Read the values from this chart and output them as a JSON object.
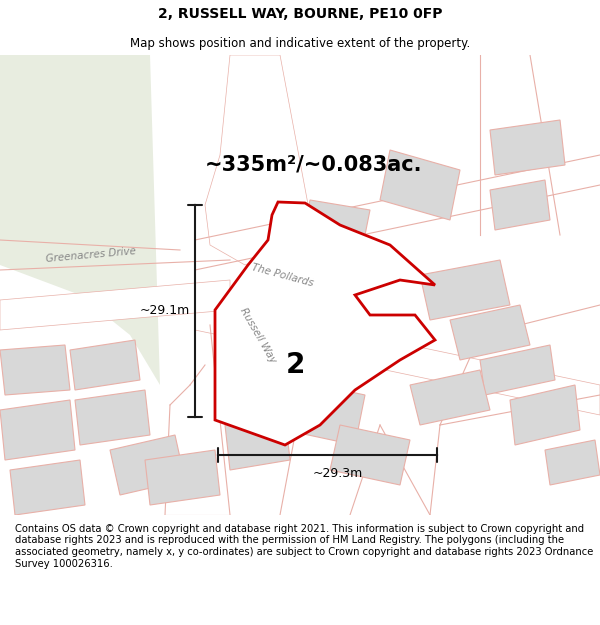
{
  "title": "2, RUSSELL WAY, BOURNE, PE10 0FP",
  "subtitle": "Map shows position and indicative extent of the property.",
  "area_label": "~335m²/~0.083ac.",
  "plot_number": "2",
  "dim_vertical": "~29.1m",
  "dim_horizontal": "~29.3m",
  "footer_text": "Contains OS data © Crown copyright and database right 2021. This information is subject to Crown copyright and database rights 2023 and is reproduced with the permission of HM Land Registry. The polygons (including the associated geometry, namely x, y co-ordinates) are subject to Crown copyright and database rights 2023 Ordnance Survey 100026316.",
  "title_fontsize": 10,
  "subtitle_fontsize": 8.5,
  "footer_fontsize": 7.2,
  "area_label_fontsize": 15,
  "plot_num_fontsize": 20,
  "map_bg": "#f8f8f6",
  "green_color": "#e8ede0",
  "road_white": "#ffffff",
  "road_outline": "#e8b0a8",
  "building_fill": "#d8d8d8",
  "building_edge": "#e8b0a8",
  "highlight_color": "#cc0000",
  "dim_color": "#1a1a1a",
  "street_color": "#888888"
}
